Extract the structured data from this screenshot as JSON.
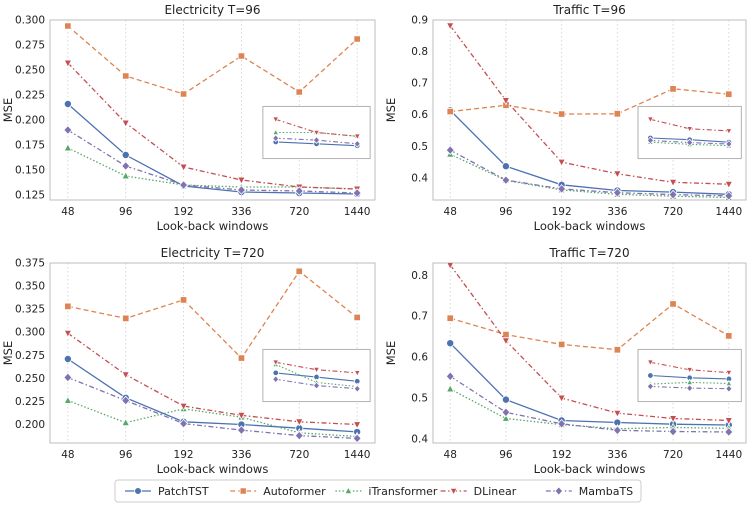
{
  "chart_data": {
    "type": "line",
    "x": [
      "48",
      "96",
      "192",
      "336",
      "720",
      "1440"
    ],
    "xlabel": "Look-back windows",
    "ylabel": "MSE",
    "grid": "x-dotted",
    "series_styles": [
      {
        "name": "PatchTST",
        "color": "#4c72b0",
        "dash": "solid",
        "marker": "circle"
      },
      {
        "name": "Autoformer",
        "color": "#dd8452",
        "dash": "dashed",
        "marker": "square"
      },
      {
        "name": "iTransformer",
        "color": "#55a868",
        "dash": "dotted",
        "marker": "triangle-up"
      },
      {
        "name": "DLinear",
        "color": "#c44e52",
        "dash": "dashdot",
        "marker": "triangle-down"
      },
      {
        "name": "MambaTS",
        "color": "#8172b2",
        "dash": "dashdot",
        "marker": "diamond"
      }
    ],
    "panels": [
      {
        "title": "Electricity T=96",
        "ylim": [
          0.12,
          0.3
        ],
        "yticks": [
          "0.125",
          "0.150",
          "0.175",
          "0.200",
          "0.225",
          "0.250",
          "0.275",
          "0.300"
        ],
        "series": [
          {
            "name": "PatchTST",
            "values": [
              0.216,
              0.165,
              0.134,
              0.128,
              0.127,
              0.126
            ]
          },
          {
            "name": "Autoformer",
            "values": [
              0.294,
              0.244,
              0.226,
              0.264,
              0.228,
              0.281
            ]
          },
          {
            "name": "iTransformer",
            "values": [
              0.172,
              0.144,
              0.135,
              0.133,
              0.133,
              0.131
            ]
          },
          {
            "name": "DLinear",
            "values": [
              0.257,
              0.197,
              0.153,
              0.14,
              0.133,
              0.131
            ]
          },
          {
            "name": "MambaTS",
            "values": [
              0.19,
              0.154,
              0.135,
              0.13,
              0.129,
              0.127
            ]
          }
        ]
      },
      {
        "title": "Traffic T=96",
        "ylim": [
          0.33,
          0.9
        ],
        "yticks": [
          "0.4",
          "0.5",
          "0.6",
          "0.7",
          "0.8",
          "0.9"
        ],
        "series": [
          {
            "name": "PatchTST",
            "values": [
              0.614,
              0.437,
              0.378,
              0.36,
              0.355,
              0.348
            ]
          },
          {
            "name": "Autoformer",
            "values": [
              0.61,
              0.63,
              0.602,
              0.603,
              0.682,
              0.665
            ]
          },
          {
            "name": "iTransformer",
            "values": [
              0.475,
              0.392,
              0.362,
              0.348,
              0.342,
              0.338
            ]
          },
          {
            "name": "DLinear",
            "values": [
              0.882,
              0.645,
              0.45,
              0.413,
              0.386,
              0.38
            ]
          },
          {
            "name": "MambaTS",
            "values": [
              0.488,
              0.393,
              0.365,
              0.353,
              0.347,
              0.343
            ]
          }
        ]
      },
      {
        "title": "Electricity T=720",
        "ylim": [
          0.18,
          0.375
        ],
        "yticks": [
          "0.200",
          "0.225",
          "0.250",
          "0.275",
          "0.300",
          "0.325",
          "0.350",
          "0.375"
        ],
        "series": [
          {
            "name": "PatchTST",
            "values": [
              0.271,
              0.229,
              0.203,
              0.2,
              0.196,
              0.192
            ]
          },
          {
            "name": "Autoformer",
            "values": [
              0.328,
              0.315,
              0.335,
              0.272,
              0.366,
              0.316
            ]
          },
          {
            "name": "iTransformer",
            "values": [
              0.226,
              0.202,
              0.217,
              0.208,
              0.191,
              0.187
            ]
          },
          {
            "name": "DLinear",
            "values": [
              0.299,
              0.254,
              0.22,
              0.21,
              0.203,
              0.2
            ]
          },
          {
            "name": "MambaTS",
            "values": [
              0.251,
              0.226,
              0.201,
              0.194,
              0.188,
              0.185
            ]
          }
        ]
      },
      {
        "title": "Traffic T=720",
        "ylim": [
          0.39,
          0.83
        ],
        "yticks": [
          "0.4",
          "0.5",
          "0.6",
          "0.7",
          "0.8"
        ],
        "series": [
          {
            "name": "PatchTST",
            "values": [
              0.634,
              0.496,
              0.445,
              0.44,
              0.436,
              0.434
            ]
          },
          {
            "name": "Autoformer",
            "values": [
              0.695,
              0.655,
              0.631,
              0.618,
              0.73,
              0.652
            ]
          },
          {
            "name": "iTransformer",
            "values": [
              0.522,
              0.45,
              0.435,
              0.425,
              0.428,
              0.426
            ]
          },
          {
            "name": "DLinear",
            "values": [
              0.825,
              0.64,
              0.5,
              0.463,
              0.45,
              0.445
            ]
          },
          {
            "name": "MambaTS",
            "values": [
              0.553,
              0.465,
              0.437,
              0.421,
              0.418,
              0.417
            ]
          }
        ]
      }
    ],
    "legend": {
      "placement": "bottom-center",
      "entries": [
        "PatchTST",
        "Autoformer",
        "iTransformer",
        "DLinear",
        "MambaTS"
      ]
    }
  }
}
